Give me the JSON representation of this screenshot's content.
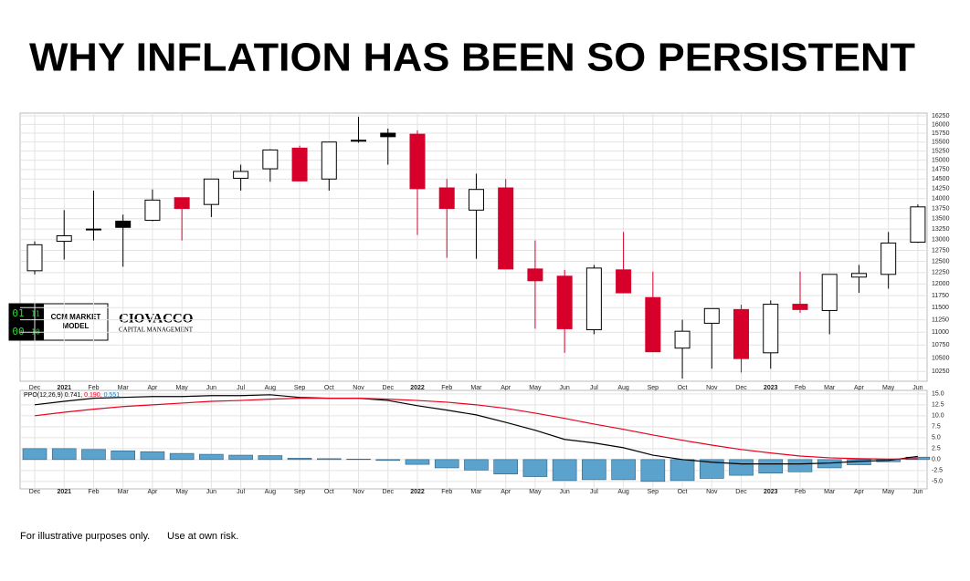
{
  "chart_data": [
    {
      "type": "candlestick",
      "title": "WHY INFLATION HAS BEEN SO PERSISTENT",
      "categories": [
        "Dec",
        "2021",
        "Feb",
        "Mar",
        "Apr",
        "May",
        "Jun",
        "Jul",
        "Aug",
        "Sep",
        "Oct",
        "Nov",
        "Dec",
        "2022",
        "Feb",
        "Mar",
        "Apr",
        "May",
        "Jun",
        "Jul",
        "Aug",
        "Sep",
        "Oct",
        "Nov",
        "Dec",
        "2023",
        "Feb",
        "Mar",
        "Apr",
        "May",
        "Jun"
      ],
      "open": [
        12290,
        12960,
        13230,
        13290,
        13460,
        14020,
        13850,
        14520,
        14770,
        15330,
        14500,
        15530,
        15650,
        15720,
        14270,
        13710,
        14270,
        12330,
        12170,
        11050,
        12310,
        11710,
        10690,
        11180,
        11460,
        10600,
        11570,
        11440,
        12150,
        12210,
        12940
      ],
      "high": [
        12960,
        13710,
        14200,
        13600,
        14230,
        14020,
        14500,
        14880,
        15300,
        15400,
        15500,
        16220,
        15880,
        15830,
        14500,
        14640,
        14500,
        12980,
        12310,
        12420,
        13180,
        12270,
        11250,
        11480,
        11560,
        11650,
        12270,
        12210,
        12420,
        13180,
        13850
      ],
      "low": [
        12210,
        12540,
        12980,
        12380,
        13440,
        12980,
        13540,
        14200,
        14430,
        14450,
        14200,
        15480,
        14880,
        13110,
        12580,
        12560,
        12330,
        11070,
        10600,
        10960,
        11810,
        10620,
        10120,
        10300,
        10230,
        10300,
        11390,
        10960,
        11810,
        11900,
        12920
      ],
      "close": [
        12880,
        13090,
        13250,
        13440,
        13960,
        13750,
        14500,
        14700,
        15280,
        14450,
        15500,
        15550,
        15750,
        14250,
        13750,
        14230,
        12330,
        12070,
        11070,
        12350,
        11810,
        10620,
        11020,
        11480,
        10490,
        11570,
        11460,
        12210,
        12230,
        12920,
        13790
      ],
      "colors": [
        "#ffffff",
        "#ffffff",
        "#000000",
        "#000000",
        "#ffffff",
        "#d6002a",
        "#ffffff",
        "#ffffff",
        "#ffffff",
        "#d6002a",
        "#ffffff",
        "#ffffff",
        "#000000",
        "#d6002a",
        "#d6002a",
        "#ffffff",
        "#d6002a",
        "#d6002a",
        "#d6002a",
        "#ffffff",
        "#d6002a",
        "#d6002a",
        "#ffffff",
        "#ffffff",
        "#d6002a",
        "#ffffff",
        "#d6002a",
        "#ffffff",
        "#ffffff",
        "#ffffff",
        "#ffffff"
      ],
      "log_scale": true,
      "ylim": [
        10070,
        16330
      ],
      "yticks": [
        10250,
        10500,
        10750,
        11000,
        11250,
        11500,
        11750,
        12000,
        12250,
        12500,
        12750,
        13000,
        13250,
        13500,
        13750,
        14000,
        14250,
        14500,
        14750,
        15000,
        15250,
        15500,
        15750,
        16000,
        16250
      ],
      "grid": true
    },
    {
      "type": "ppo",
      "categories": [
        "Dec",
        "2021",
        "Feb",
        "Mar",
        "Apr",
        "May",
        "Jun",
        "Jul",
        "Aug",
        "Sep",
        "Oct",
        "Nov",
        "Dec",
        "2022",
        "Feb",
        "Mar",
        "Apr",
        "May",
        "Jun",
        "Jul",
        "Aug",
        "Sep",
        "Oct",
        "Nov",
        "Dec",
        "2023",
        "Feb",
        "Mar",
        "Apr",
        "May",
        "Jun"
      ],
      "legend": {
        "label": "PPO(12,26,9)",
        "values": [
          0.741,
          0.19,
          0.551
        ],
        "value_labels": [
          "0.741,",
          "0.190,",
          "0.551"
        ]
      },
      "series": [
        {
          "type": "line",
          "color": "#000000",
          "values": [
            12.5,
            13.3,
            14.0,
            14.2,
            14.4,
            14.4,
            14.6,
            14.6,
            14.8,
            14.2,
            14.0,
            14.0,
            13.5,
            12.3,
            11.3,
            10.2,
            8.5,
            6.7,
            4.6,
            3.8,
            2.7,
            1.0,
            0,
            -0.6,
            -1.0,
            -1.0,
            -1.0,
            -0.8,
            -0.4,
            -0.2,
            0.741
          ]
        },
        {
          "type": "line",
          "color": "#e8001c",
          "values": [
            10.0,
            10.8,
            11.5,
            12.1,
            12.5,
            12.9,
            13.3,
            13.5,
            13.8,
            14.0,
            14.0,
            14.0,
            13.8,
            13.5,
            13.1,
            12.5,
            11.7,
            10.6,
            9.4,
            8.1,
            6.9,
            5.6,
            4.4,
            3.3,
            2.3,
            1.5,
            0.8,
            0.4,
            0.2,
            0.1,
            0.19
          ]
        },
        {
          "type": "bar",
          "color": "#5ba3cc",
          "values": [
            2.5,
            2.5,
            2.3,
            2.0,
            1.8,
            1.4,
            1.2,
            1.0,
            0.9,
            0.3,
            0.2,
            0.1,
            -0.2,
            -1.1,
            -1.9,
            -2.4,
            -3.3,
            -3.9,
            -4.8,
            -4.6,
            -4.6,
            -5.0,
            -4.8,
            -4.3,
            -3.6,
            -3.1,
            -2.8,
            -1.9,
            -1.2,
            -0.5,
            0.551
          ]
        }
      ],
      "ylim": [
        -6.7,
        15.8
      ],
      "yticks": [
        {
          "value": -5,
          "label": "-5.0"
        },
        -2.5,
        {
          "value": 0,
          "label": "0.0"
        },
        2.5,
        {
          "value": 5,
          "label": "5.0"
        },
        7.5,
        {
          "value": 10,
          "label": "10.0"
        },
        12.5,
        {
          "value": 15,
          "label": "15.0"
        }
      ],
      "grid": true
    }
  ],
  "logo": {
    "digits": [
      "01",
      "11",
      "00",
      "10"
    ],
    "line1": "CCM MARKET",
    "line2": "MODEL",
    "brand": "CIOVACCO",
    "brand_sub": "CAPITAL MANAGEMENT"
  },
  "footer": [
    "For illustrative purposes only.",
    "Use at own risk."
  ]
}
